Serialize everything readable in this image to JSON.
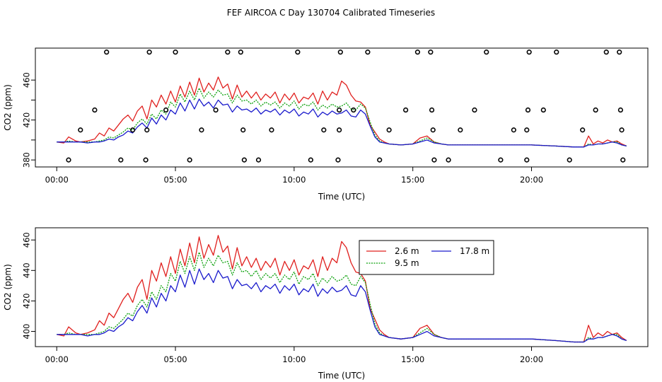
{
  "chart_data": {
    "title": "FEF AIRCOA C  Day 130704  Calibrated Timeseries",
    "colors": {
      "s26": "#e0201e",
      "s95": "#0aa00a",
      "s178": "#1a1acc",
      "frame": "#000000",
      "marker": "#000000"
    },
    "x_ticks": [
      0,
      5,
      10,
      15,
      20
    ],
    "x_tick_labels": [
      "00:00",
      "05:00",
      "10:00",
      "15:00",
      "20:00"
    ],
    "panels": [
      {
        "type": "line",
        "ylabel": "CO2 (ppm)",
        "xlabel": "Time (UTC)",
        "ylim": [
          373,
          492
        ],
        "xlim": [
          -0.9,
          24.9
        ],
        "y_ticks": [
          380,
          400,
          420,
          440,
          460
        ],
        "y_tick_labels": [
          "380",
          "",
          "420",
          "",
          "460"
        ],
        "series": [
          {
            "name": "2.6 m",
            "color_key": "s26",
            "x": [
              0.0,
              0.3,
              0.5,
              0.8,
              1.0,
              1.3,
              1.6,
              1.8,
              2.0,
              2.2,
              2.4,
              2.6,
              2.8,
              3.0,
              3.2,
              3.4,
              3.6,
              3.8,
              4.0,
              4.2,
              4.4,
              4.6,
              4.8,
              5.0,
              5.2,
              5.4,
              5.6,
              5.8,
              6.0,
              6.2,
              6.4,
              6.6,
              6.8,
              7.0,
              7.2,
              7.4,
              7.6,
              7.8,
              8.0,
              8.2,
              8.4,
              8.6,
              8.8,
              9.0,
              9.2,
              9.4,
              9.6,
              9.8,
              10.0,
              10.2,
              10.4,
              10.6,
              10.8,
              11.0,
              11.2,
              11.4,
              11.6,
              11.8,
              12.0,
              12.2,
              12.4,
              12.6,
              12.8,
              13.0,
              13.2,
              13.4,
              13.6,
              13.8,
              14.0,
              14.5,
              15.0,
              15.3,
              15.6,
              15.9,
              16.2,
              16.5,
              17.0,
              18.0,
              19.0,
              20.0,
              21.0,
              21.8,
              22.2,
              22.4,
              22.6,
              22.8,
              23.0,
              23.2,
              23.4,
              23.6,
              23.8,
              24.0
            ],
            "y": [
              398,
              397,
              403,
              399,
              398,
              399,
              401,
              407,
              404,
              412,
              409,
              415,
              421,
              425,
              419,
              429,
              434,
              421,
              440,
              433,
              445,
              436,
              449,
              438,
              454,
              443,
              458,
              445,
              462,
              448,
              457,
              450,
              463,
              452,
              456,
              441,
              455,
              443,
              449,
              442,
              448,
              440,
              446,
              442,
              448,
              437,
              446,
              440,
              447,
              437,
              443,
              441,
              447,
              436,
              449,
              440,
              448,
              445,
              459,
              455,
              445,
              439,
              438,
              433,
              415,
              408,
              401,
              398,
              396,
              395,
              396,
              402,
              404,
              398,
              396,
              395,
              395,
              395,
              395,
              395,
              394,
              393,
              393,
              404,
              396,
              399,
              397,
              400,
              398,
              399,
              396,
              394
            ]
          },
          {
            "name": "9.5 m",
            "color_key": "s95",
            "x": [
              0.0,
              0.3,
              0.5,
              0.8,
              1.0,
              1.3,
              1.6,
              1.8,
              2.0,
              2.2,
              2.4,
              2.6,
              2.8,
              3.0,
              3.2,
              3.4,
              3.6,
              3.8,
              4.0,
              4.2,
              4.4,
              4.6,
              4.8,
              5.0,
              5.2,
              5.4,
              5.6,
              5.8,
              6.0,
              6.2,
              6.4,
              6.6,
              6.8,
              7.0,
              7.2,
              7.4,
              7.6,
              7.8,
              8.0,
              8.2,
              8.4,
              8.6,
              8.8,
              9.0,
              9.2,
              9.4,
              9.6,
              9.8,
              10.0,
              10.2,
              10.4,
              10.6,
              10.8,
              11.0,
              11.2,
              11.4,
              11.6,
              11.8,
              12.0,
              12.2,
              12.4,
              12.6,
              12.8,
              13.0,
              13.2,
              13.4,
              13.6,
              13.8,
              14.0,
              14.5,
              15.0,
              15.3,
              15.6,
              15.9,
              16.2,
              16.5,
              17.0,
              18.0,
              19.0,
              20.0,
              21.0,
              21.8,
              22.2,
              22.4,
              22.6,
              22.8,
              23.0,
              23.2,
              23.4,
              23.6,
              23.8,
              24.0
            ],
            "y": [
              398,
              398,
              399,
              398,
              398,
              398,
              398,
              399,
              400,
              403,
              402,
              405,
              408,
              412,
              410,
              417,
              421,
              416,
              426,
              421,
              430,
              426,
              438,
              433,
              446,
              438,
              449,
              440,
              452,
              442,
              448,
              443,
              450,
              445,
              446,
              437,
              445,
              439,
              440,
              436,
              440,
              434,
              438,
              435,
              438,
              432,
              437,
              434,
              439,
              431,
              436,
              434,
              438,
              430,
              435,
              432,
              436,
              433,
              434,
              437,
              431,
              430,
              436,
              432,
              418,
              405,
              399,
              397,
              396,
              395,
              396,
              399,
              402,
              398,
              396,
              395,
              395,
              395,
              395,
              395,
              394,
              393,
              393,
              396,
              395,
              396,
              396,
              397,
              398,
              398,
              395,
              394
            ]
          },
          {
            "name": "17.8 m",
            "color_key": "s178",
            "x": [
              0.0,
              0.3,
              0.5,
              0.8,
              1.0,
              1.3,
              1.6,
              1.8,
              2.0,
              2.2,
              2.4,
              2.6,
              2.8,
              3.0,
              3.2,
              3.4,
              3.6,
              3.8,
              4.0,
              4.2,
              4.4,
              4.6,
              4.8,
              5.0,
              5.2,
              5.4,
              5.6,
              5.8,
              6.0,
              6.2,
              6.4,
              6.6,
              6.8,
              7.0,
              7.2,
              7.4,
              7.6,
              7.8,
              8.0,
              8.2,
              8.4,
              8.6,
              8.8,
              9.0,
              9.2,
              9.4,
              9.6,
              9.8,
              10.0,
              10.2,
              10.4,
              10.6,
              10.8,
              11.0,
              11.2,
              11.4,
              11.6,
              11.8,
              12.0,
              12.2,
              12.4,
              12.6,
              12.8,
              13.0,
              13.2,
              13.4,
              13.6,
              13.8,
              14.0,
              14.5,
              15.0,
              15.3,
              15.6,
              15.9,
              16.2,
              16.5,
              17.0,
              18.0,
              19.0,
              20.0,
              21.0,
              21.8,
              22.2,
              22.4,
              22.6,
              22.8,
              23.0,
              23.2,
              23.4,
              23.6,
              23.8,
              24.0
            ],
            "y": [
              398,
              398,
              398,
              398,
              398,
              397,
              398,
              398,
              399,
              401,
              400,
              403,
              405,
              409,
              407,
              413,
              417,
              412,
              422,
              416,
              425,
              420,
              430,
              426,
              437,
              429,
              440,
              431,
              441,
              434,
              438,
              432,
              440,
              435,
              436,
              428,
              434,
              430,
              431,
              428,
              432,
              426,
              430,
              428,
              431,
              425,
              430,
              427,
              431,
              424,
              428,
              426,
              431,
              423,
              428,
              425,
              429,
              426,
              427,
              430,
              424,
              423,
              430,
              426,
              414,
              403,
              398,
              397,
              396,
              395,
              396,
              398,
              400,
              397,
              396,
              395,
              395,
              395,
              395,
              395,
              394,
              393,
              393,
              395,
              395,
              396,
              396,
              397,
              398,
              397,
              395,
              394
            ]
          }
        ],
        "markers": [
          {
            "x": 0.5,
            "y": 380
          },
          {
            "x": 1.0,
            "y": 410
          },
          {
            "x": 1.6,
            "y": 430
          },
          {
            "x": 2.1,
            "y": 488
          },
          {
            "x": 2.7,
            "y": 380
          },
          {
            "x": 3.2,
            "y": 410
          },
          {
            "x": 3.75,
            "y": 380
          },
          {
            "x": 3.8,
            "y": 410
          },
          {
            "x": 3.9,
            "y": 488
          },
          {
            "x": 4.6,
            "y": 430
          },
          {
            "x": 5.0,
            "y": 488
          },
          {
            "x": 5.6,
            "y": 380
          },
          {
            "x": 6.1,
            "y": 410
          },
          {
            "x": 6.7,
            "y": 430
          },
          {
            "x": 7.2,
            "y": 488
          },
          {
            "x": 7.75,
            "y": 488
          },
          {
            "x": 7.85,
            "y": 410
          },
          {
            "x": 7.9,
            "y": 380
          },
          {
            "x": 8.5,
            "y": 380
          },
          {
            "x": 9.05,
            "y": 410
          },
          {
            "x": 10.15,
            "y": 488
          },
          {
            "x": 10.7,
            "y": 380
          },
          {
            "x": 11.25,
            "y": 410
          },
          {
            "x": 11.85,
            "y": 380
          },
          {
            "x": 11.9,
            "y": 410
          },
          {
            "x": 11.9,
            "y": 430
          },
          {
            "x": 11.95,
            "y": 488
          },
          {
            "x": 12.5,
            "y": 430
          },
          {
            "x": 13.1,
            "y": 488
          },
          {
            "x": 13.6,
            "y": 380
          },
          {
            "x": 14.0,
            "y": 410
          },
          {
            "x": 14.7,
            "y": 430
          },
          {
            "x": 15.2,
            "y": 488
          },
          {
            "x": 15.75,
            "y": 488
          },
          {
            "x": 15.8,
            "y": 430
          },
          {
            "x": 15.85,
            "y": 410
          },
          {
            "x": 15.9,
            "y": 380
          },
          {
            "x": 16.5,
            "y": 380
          },
          {
            "x": 17.0,
            "y": 410
          },
          {
            "x": 17.6,
            "y": 430
          },
          {
            "x": 18.1,
            "y": 488
          },
          {
            "x": 18.7,
            "y": 380
          },
          {
            "x": 19.25,
            "y": 410
          },
          {
            "x": 19.8,
            "y": 410
          },
          {
            "x": 19.8,
            "y": 380
          },
          {
            "x": 19.85,
            "y": 430
          },
          {
            "x": 19.9,
            "y": 488
          },
          {
            "x": 20.5,
            "y": 430
          },
          {
            "x": 21.05,
            "y": 488
          },
          {
            "x": 21.6,
            "y": 380
          },
          {
            "x": 22.15,
            "y": 410
          },
          {
            "x": 22.7,
            "y": 430
          },
          {
            "x": 23.15,
            "y": 488
          },
          {
            "x": 23.7,
            "y": 488
          },
          {
            "x": 23.75,
            "y": 430
          },
          {
            "x": 23.8,
            "y": 410
          },
          {
            "x": 23.85,
            "y": 380
          }
        ]
      },
      {
        "type": "line",
        "ylabel": "CO2 (ppm)",
        "xlabel": "Time (UTC)",
        "ylim": [
          390,
          468
        ],
        "xlim": [
          -0.9,
          24.9
        ],
        "y_ticks": [
          400,
          420,
          440,
          460
        ],
        "y_tick_labels": [
          "400",
          "420",
          "440",
          "460"
        ],
        "legend": {
          "position": "top-right",
          "entries": [
            "2.6 m",
            "9.5 m",
            "17.8 m"
          ]
        },
        "series_ref": "same as panel 1"
      }
    ]
  }
}
